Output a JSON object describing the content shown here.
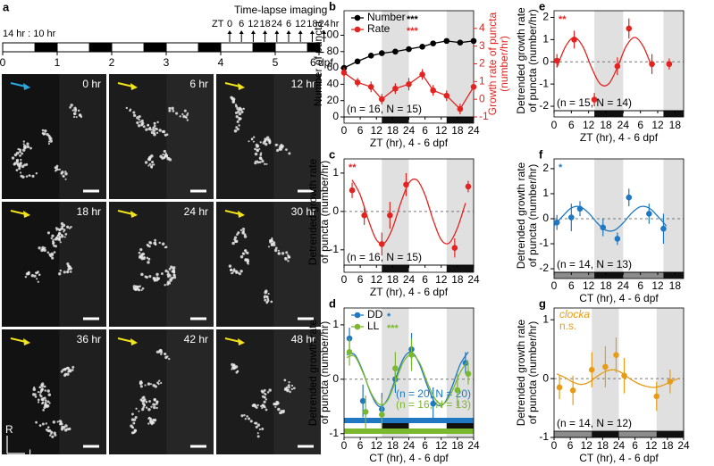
{
  "timeline": {
    "light_dark": "14 hr : 10 hr",
    "title": "Time-lapse imaging",
    "days": [
      "0",
      "1",
      "2",
      "3",
      "4",
      "5",
      "6"
    ],
    "day_unit": "dpf",
    "zt": "ZT",
    "zt_times": [
      "0",
      "6",
      "12",
      "18",
      "24",
      "6",
      "12",
      "18",
      "24"
    ],
    "zt_unit": "hr"
  },
  "images": {
    "panel": "a",
    "times": [
      "0 hr",
      "6 hr",
      "12 hr",
      "18 hr",
      "24 hr",
      "30 hr",
      "36 hr",
      "42 hr",
      "48 hr"
    ],
    "axis_r": "R",
    "axis_l": "L"
  },
  "chart_data": [
    {
      "type": "line",
      "panel": "b",
      "xlabel": "ZT (hr), 4 - 6 dpf",
      "ylabel": [
        "Number of puncta"
      ],
      "y2label": [
        "Growth rate of puncta",
        "(number/hr)"
      ],
      "note": "(n = 16, N = 15)",
      "xlim": [
        0,
        48
      ],
      "xticks": [
        0,
        6,
        12,
        18,
        24,
        {
          "value": 30,
          "label": "6"
        },
        {
          "value": 36,
          "label": "12"
        },
        {
          "value": 42,
          "label": "18"
        },
        {
          "value": 48,
          "label": "24"
        }
      ],
      "ylim": [
        0,
        130
      ],
      "yticks": [
        0,
        20,
        40,
        60,
        80,
        100
      ],
      "y2lim": [
        -1,
        5
      ],
      "y2ticks": [
        -1,
        0,
        1,
        2,
        3,
        4
      ],
      "shaded_x": [
        [
          14,
          24
        ],
        [
          38,
          48
        ]
      ],
      "series": [
        {
          "name": "Number",
          "stars": "***",
          "color": "#000000",
          "x": [
            0,
            5,
            10,
            14,
            19,
            24,
            29,
            33,
            38,
            43,
            48
          ],
          "values": [
            60,
            68,
            75,
            78,
            80,
            83,
            86,
            90,
            93,
            91,
            93
          ]
        },
        {
          "name": "Rate",
          "stars": "***",
          "color": "#e3231f",
          "axis": "y2",
          "x": [
            0,
            5,
            10,
            14,
            19,
            24,
            29,
            33,
            38,
            43,
            48
          ],
          "values": [
            1.5,
            0.95,
            0.7,
            0.0,
            0.6,
            0.85,
            1.4,
            0.5,
            0.2,
            -0.55,
            0.7
          ],
          "errors": [
            0.3,
            0.25,
            0.3,
            0.3,
            0.3,
            0.35,
            0.3,
            0.3,
            0.3,
            0.3,
            0.3
          ]
        }
      ]
    },
    {
      "type": "scatter",
      "panel": "c",
      "stars": "**",
      "xlabel": "ZT (hr), 4 - 6 dpf",
      "ylabel": [
        "Detrended growth rate",
        "of puncta (number/hr)"
      ],
      "note": "(n = 16, N = 15)",
      "xlim": [
        0,
        48
      ],
      "xticks": [
        0,
        6,
        12,
        18,
        24,
        {
          "value": 30,
          "label": "6"
        },
        {
          "value": 36,
          "label": "12"
        },
        {
          "value": 42,
          "label": "18"
        },
        {
          "value": 48,
          "label": "24"
        }
      ],
      "ylim": [
        -1.4,
        1.37
      ],
      "yticks": [
        -1,
        0,
        1
      ],
      "ref_line": 0,
      "shaded_x": [
        [
          14,
          24
        ],
        [
          38,
          48
        ]
      ],
      "series": [
        {
          "color": "#e3231f",
          "x": [
            3,
            7.5,
            14,
            17,
            23,
            41,
            46
          ],
          "values": [
            0.55,
            -0.1,
            -0.85,
            -0.1,
            0.7,
            -0.95,
            0.65
          ],
          "errors": [
            0.2,
            0.25,
            0.3,
            0.35,
            0.3,
            0.25,
            0.15
          ],
          "fit_x": [
            3,
            6,
            9,
            12,
            15,
            18,
            21,
            24,
            27,
            30,
            33,
            36,
            39,
            42,
            45
          ],
          "fit_values": [
            0.82,
            0.43,
            -0.22,
            -0.74,
            -0.82,
            -0.43,
            0.22,
            0.74,
            0.82,
            0.43,
            -0.22,
            -0.74,
            -0.82,
            -0.43,
            0.22
          ]
        }
      ]
    },
    {
      "type": "scatter",
      "panel": "d",
      "xlabel": "CT (hr), 4 - 6 dpf",
      "ylabel": [
        "Detrended growth rate",
        "of puncta (number/hr)"
      ],
      "xlim": [
        0,
        48
      ],
      "xticks": [
        0,
        6,
        12,
        18,
        24,
        {
          "value": 30,
          "label": "6"
        },
        {
          "value": 36,
          "label": "12"
        },
        {
          "value": 42,
          "label": "18"
        },
        {
          "value": 48,
          "label": "24"
        }
      ],
      "ylim": [
        -1.07,
        1.31
      ],
      "yticks": [
        -1,
        0,
        1
      ],
      "ref_line": 0,
      "shaded_x": [
        [
          14,
          24
        ],
        [
          38,
          48
        ]
      ],
      "series": [
        {
          "name": "DD",
          "stars": "*",
          "note": "(n = 20, N = 20)",
          "color": "#1f78c1",
          "x": [
            2,
            7,
            14,
            19,
            25,
            33,
            45
          ],
          "values": [
            0.75,
            -0.4,
            -0.55,
            0.0,
            0.55,
            -0.45,
            0.3
          ],
          "errors": [
            0.2,
            0.3,
            0.3,
            0.25,
            0.3,
            0.3,
            0.2
          ],
          "fit_x": [
            1,
            4,
            7,
            10,
            13,
            16,
            19,
            22,
            25,
            28,
            31,
            34,
            37,
            40,
            43,
            46
          ],
          "fit_values": [
            0.45,
            0.45,
            0.14,
            -0.27,
            -0.5,
            -0.38,
            0.0,
            0.38,
            0.5,
            0.27,
            -0.14,
            -0.45,
            -0.45,
            -0.14,
            0.27,
            0.5
          ]
        },
        {
          "name": "LL",
          "stars": "***",
          "note": "(n = 16, N = 13)",
          "color": "#7cb82f",
          "x": [
            2,
            8,
            14,
            19,
            25,
            42,
            46
          ],
          "values": [
            0.5,
            -0.6,
            -0.65,
            0.2,
            0.45,
            -0.2,
            0.1
          ],
          "errors": [
            0.25,
            0.3,
            0.3,
            0.3,
            0.3,
            0.3,
            0.2
          ],
          "fit_x": [
            1,
            4,
            7,
            10,
            13,
            16,
            19,
            22,
            25,
            28,
            31,
            34,
            37,
            40,
            43,
            46
          ],
          "fit_values": [
            0.4,
            0.42,
            0.12,
            -0.25,
            -0.46,
            -0.4,
            -0.05,
            0.32,
            0.45,
            0.3,
            -0.08,
            -0.38,
            -0.45,
            -0.22,
            0.12,
            0.35
          ]
        }
      ]
    },
    {
      "type": "scatter",
      "panel": "e",
      "stars": "**",
      "xlabel": "ZT (hr), 4 - 6 dpf",
      "ylabel": [
        "Detrended growth rate",
        "of puncta (number/hr)"
      ],
      "note": "(n = 15, N = 14)",
      "xlim": [
        0,
        45
      ],
      "xticks": [
        0,
        6,
        12,
        18,
        24,
        {
          "value": 30,
          "label": "6"
        },
        {
          "value": 36,
          "label": "12"
        },
        {
          "value": 42,
          "label": "18"
        }
      ],
      "ylim": [
        -2.2,
        2.3
      ],
      "yticks": [
        -2,
        -1,
        0,
        1,
        2
      ],
      "ref_line": 0,
      "shaded_x": [
        [
          14,
          24
        ],
        [
          38,
          45
        ]
      ],
      "series": [
        {
          "color": "#e3231f",
          "x": [
            1,
            7,
            14,
            22,
            26,
            34,
            40
          ],
          "values": [
            0.05,
            1.0,
            -1.7,
            -0.2,
            1.5,
            -0.1,
            -0.1
          ],
          "errors": [
            0.3,
            0.4,
            0.3,
            0.4,
            0.45,
            0.45,
            0.25
          ],
          "fit_x": [
            1,
            4,
            7,
            10,
            13,
            16,
            19,
            22,
            25,
            28,
            31,
            34
          ],
          "fit_values": [
            -0.25,
            0.69,
            1.1,
            0.69,
            -0.25,
            -0.99,
            -0.99,
            -0.25,
            0.69,
            1.1,
            0.69,
            -0.25
          ]
        }
      ]
    },
    {
      "type": "scatter",
      "panel": "f",
      "stars": "*",
      "xlabel": "CT (hr), 4 - 6 dpf",
      "ylabel": [
        "Detrended growth rate",
        "of puncta (number/hr)"
      ],
      "note": "(n = 14, N = 13)",
      "xlim": [
        0,
        45
      ],
      "xticks": [
        0,
        6,
        12,
        18,
        24,
        {
          "value": 30,
          "label": "6"
        },
        {
          "value": 36,
          "label": "12"
        },
        {
          "value": 42,
          "label": "18"
        }
      ],
      "ylim": [
        -2.14,
        2.39
      ],
      "yticks": [
        -2,
        -1,
        0,
        1,
        2
      ],
      "ref_line": 0,
      "shaded_x": [
        [
          14,
          24
        ],
        [
          38,
          45
        ]
      ],
      "series": [
        {
          "color": "#1f78c1",
          "x": [
            1,
            6,
            9,
            17,
            22,
            26,
            33,
            38
          ],
          "values": [
            -0.15,
            0.05,
            0.4,
            -0.35,
            -0.8,
            0.85,
            0.2,
            -0.4
          ],
          "errors": [
            0.3,
            0.55,
            0.3,
            0.35,
            0.25,
            0.35,
            0.4,
            0.6
          ],
          "fit_x": [
            0,
            3,
            6,
            9,
            12,
            15,
            18,
            21,
            24,
            27,
            30,
            33,
            36,
            39
          ],
          "fit_values": [
            -0.29,
            0.1,
            0.43,
            0.48,
            0.23,
            -0.17,
            -0.46,
            -0.46,
            -0.17,
            0.23,
            0.48,
            0.43,
            0.1,
            -0.29
          ]
        }
      ]
    },
    {
      "type": "scatter",
      "panel": "g",
      "genotype": "clocka",
      "stars": "n.s.",
      "xlabel": "CT (hr), 4 - 6 dpf",
      "ylabel": [
        "Detrended growth rate",
        "of puncta (number/hr)"
      ],
      "note": "(n = 14, N = 12)",
      "xlim": [
        0,
        48
      ],
      "xticks": [
        0,
        6,
        12,
        18,
        24,
        {
          "value": 30,
          "label": "6"
        },
        {
          "value": 36,
          "label": "12"
        },
        {
          "value": 42,
          "label": "18"
        },
        {
          "value": 48,
          "label": "24"
        }
      ],
      "ylim": [
        -1.0,
        1.2
      ],
      "yticks": [
        -1,
        0,
        1
      ],
      "ref_line": 0,
      "shaded_x": [
        [
          14,
          24
        ],
        [
          38,
          48
        ]
      ],
      "series": [
        {
          "color": "#e89b15",
          "x": [
            2,
            7,
            14,
            19,
            23,
            26,
            38,
            43
          ],
          "values": [
            -0.15,
            -0.2,
            0.15,
            0.2,
            0.4,
            0.05,
            -0.3,
            -0.05
          ],
          "errors": [
            0.2,
            0.25,
            0.3,
            0.35,
            0.3,
            0.3,
            0.25,
            0.2
          ],
          "fit_x": [
            1,
            4,
            7,
            10,
            13,
            16,
            19,
            22,
            25,
            28,
            31,
            34,
            37,
            40,
            43,
            46
          ],
          "fit_values": [
            0.08,
            0.02,
            -0.06,
            -0.1,
            -0.06,
            0.04,
            0.12,
            0.15,
            0.1,
            0.0,
            -0.08,
            -0.13,
            -0.15,
            -0.12,
            -0.06,
            0.0
          ]
        }
      ]
    }
  ]
}
